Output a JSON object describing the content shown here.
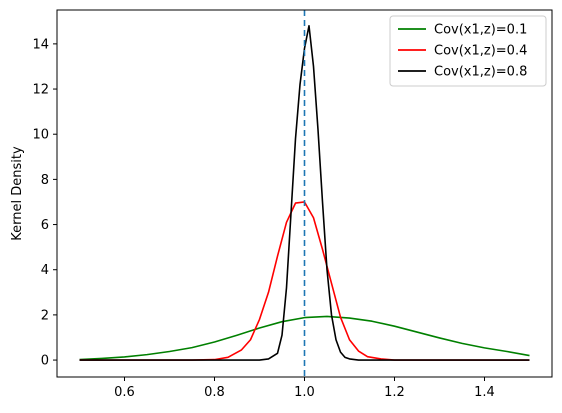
{
  "chart_data": {
    "type": "line",
    "title": "",
    "xlabel": "",
    "ylabel": "Kernel Density",
    "xlim": [
      0.45,
      1.55
    ],
    "ylim": [
      -0.75,
      15.5
    ],
    "xticks": [
      0.6,
      0.8,
      1.0,
      1.2,
      1.4
    ],
    "xtick_labels": [
      "0.6",
      "0.8",
      "1.0",
      "1.2",
      "1.4"
    ],
    "yticks": [
      0,
      2,
      4,
      6,
      8,
      10,
      12,
      14
    ],
    "ytick_labels": [
      "0",
      "2",
      "4",
      "6",
      "8",
      "10",
      "12",
      "14"
    ],
    "grid": false,
    "legend_position": "top-right",
    "reference_line": {
      "x": 1.0,
      "style": "dashed",
      "color": "#1f77b4"
    },
    "series": [
      {
        "name": "Cov(x1,z)=0.1",
        "color": "#008000",
        "x": [
          0.5,
          0.55,
          0.6,
          0.65,
          0.7,
          0.75,
          0.8,
          0.85,
          0.9,
          0.95,
          1.0,
          1.05,
          1.1,
          1.15,
          1.2,
          1.25,
          1.3,
          1.35,
          1.4,
          1.45,
          1.5
        ],
        "values": [
          0.02,
          0.07,
          0.14,
          0.24,
          0.38,
          0.55,
          0.8,
          1.1,
          1.42,
          1.7,
          1.88,
          1.93,
          1.86,
          1.72,
          1.5,
          1.24,
          0.98,
          0.74,
          0.54,
          0.38,
          0.2
        ]
      },
      {
        "name": "Cov(x1,z)=0.4",
        "color": "#ff0000",
        "x": [
          0.5,
          0.75,
          0.8,
          0.83,
          0.86,
          0.88,
          0.9,
          0.92,
          0.94,
          0.96,
          0.98,
          1.0,
          1.02,
          1.04,
          1.06,
          1.08,
          1.1,
          1.12,
          1.14,
          1.17,
          1.2,
          1.5
        ],
        "values": [
          0.0,
          0.0,
          0.02,
          0.12,
          0.45,
          0.9,
          1.8,
          3.0,
          4.6,
          6.1,
          6.95,
          7.0,
          6.3,
          4.9,
          3.4,
          1.9,
          0.9,
          0.4,
          0.15,
          0.05,
          0.0,
          0.0
        ]
      },
      {
        "name": "Cov(x1,z)=0.8",
        "color": "#000000",
        "x": [
          0.5,
          0.9,
          0.92,
          0.94,
          0.95,
          0.96,
          0.97,
          0.98,
          0.99,
          1.0,
          1.01,
          1.02,
          1.03,
          1.04,
          1.05,
          1.06,
          1.07,
          1.08,
          1.09,
          1.1,
          1.12,
          1.5
        ],
        "values": [
          0.0,
          0.0,
          0.05,
          0.3,
          1.1,
          3.2,
          6.5,
          9.8,
          12.2,
          13.8,
          14.8,
          13.0,
          10.2,
          7.0,
          4.0,
          2.0,
          0.9,
          0.35,
          0.12,
          0.05,
          0.0,
          0.0
        ]
      }
    ]
  }
}
